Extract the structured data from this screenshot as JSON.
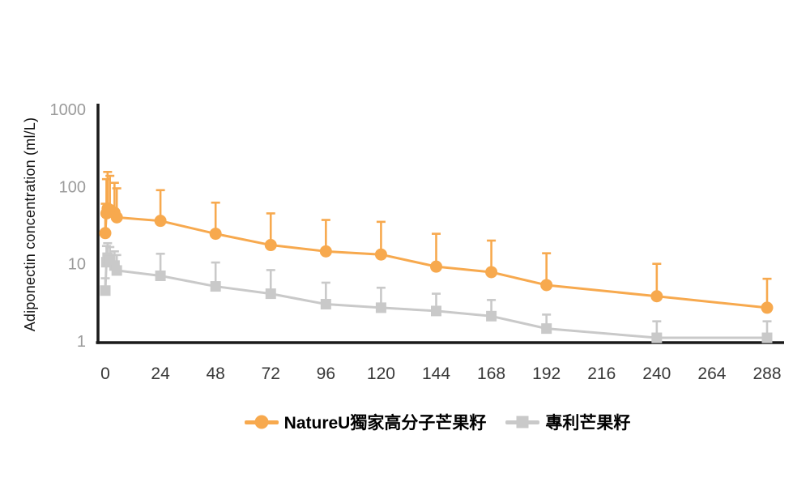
{
  "figure": {
    "background": "#ffffff"
  },
  "chart_data": {
    "type": "line",
    "title": "",
    "xlabel": "",
    "ylabel": "Adiponectin concentration (ml/L)",
    "y_scale": "log",
    "ylim": [
      1,
      1000
    ],
    "xlim": [
      0,
      288
    ],
    "grid": false,
    "legend_position": "bottom-center",
    "x_ticks": [
      0,
      24,
      48,
      72,
      96,
      120,
      144,
      168,
      192,
      216,
      240,
      264,
      288
    ],
    "y_ticks": [
      1,
      10,
      100,
      1000
    ],
    "x": [
      0,
      0.5,
      1,
      2,
      4,
      5,
      24,
      48,
      72,
      96,
      120,
      144,
      168,
      192,
      240,
      288
    ],
    "series": [
      {
        "name": "NatureU獨家高分子芒果籽",
        "color": "#F7A94E",
        "marker": "circle",
        "values": [
          25,
          45,
          52,
          50,
          46,
          40,
          36,
          24.5,
          17.5,
          14.5,
          13.2,
          9.2,
          7.8,
          5.3,
          3.8,
          2.7
        ],
        "error_top": [
          60,
          125,
          155,
          138,
          112,
          95,
          90,
          62,
          45,
          37,
          35,
          24.5,
          20,
          13.7,
          10,
          6.4
        ]
      },
      {
        "name": "專利芒果籽",
        "color": "#C9C9C9",
        "marker": "square",
        "values": [
          4.5,
          10.5,
          12,
          11,
          9.5,
          8.2,
          7,
          5.1,
          4.1,
          3.0,
          2.7,
          2.45,
          2.1,
          1.45,
          1.1,
          1.1
        ],
        "error_top": [
          6.5,
          17,
          18.5,
          16.5,
          14.5,
          13,
          13.5,
          10.4,
          8.3,
          5.7,
          4.9,
          4.1,
          3.4,
          2.2,
          1.8,
          1.8
        ]
      }
    ],
    "style": {
      "axis_color": "#1a1a1a",
      "x_tick_color": "#383838",
      "y_tick_color": "#9b9b9b"
    }
  }
}
